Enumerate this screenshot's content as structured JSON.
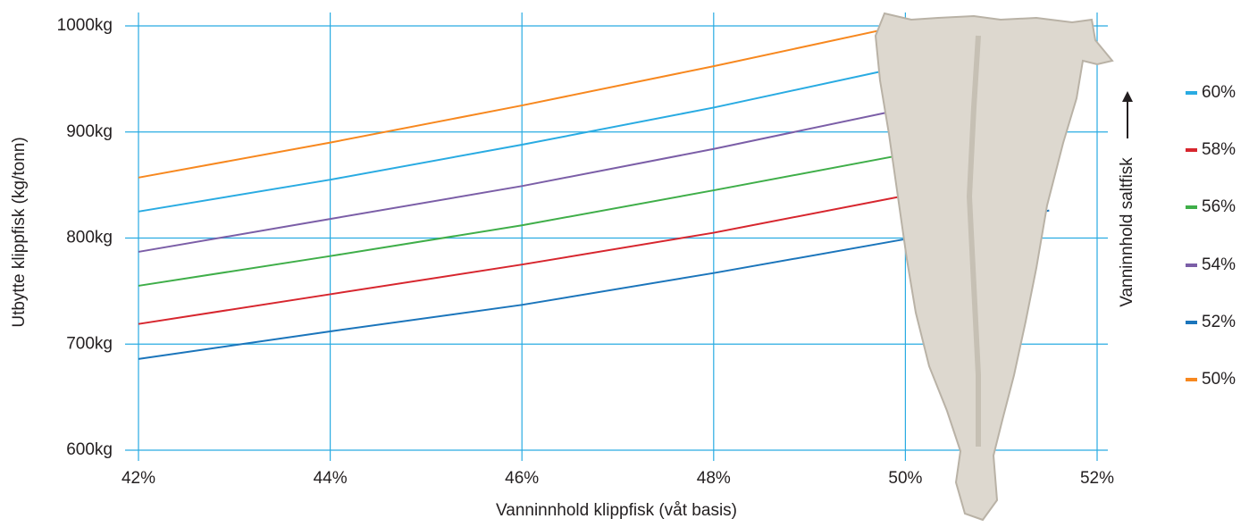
{
  "chart_data": {
    "type": "line",
    "x_label": "Vanninnhold klippfisk (våt basis)",
    "y_label": "Utbytte klippfisk (kg/tonn)",
    "legend_title": "Vanninnhold saltfisk",
    "xlim": [
      42,
      52
    ],
    "ylim": [
      600,
      1000
    ],
    "xticks": [
      {
        "value": 42,
        "label": "42%"
      },
      {
        "value": 44,
        "label": "44%"
      },
      {
        "value": 46,
        "label": "46%"
      },
      {
        "value": 48,
        "label": "48%"
      },
      {
        "value": 50,
        "label": "50%"
      },
      {
        "value": 52,
        "label": "52%"
      }
    ],
    "yticks": [
      {
        "value": 600,
        "label": "600kg"
      },
      {
        "value": 700,
        "label": "700kg"
      },
      {
        "value": 800,
        "label": "800kg"
      },
      {
        "value": 900,
        "label": "900kg"
      },
      {
        "value": 1000,
        "label": "1000kg"
      }
    ],
    "grid": true,
    "legend_position": "right",
    "series": [
      {
        "name": "60%",
        "color": "#29abe2",
        "x": [
          42,
          44,
          46,
          48,
          50,
          51.5
        ],
        "values": [
          825,
          855,
          888,
          923,
          962,
          993
        ]
      },
      {
        "name": "58%",
        "color": "#d7262e",
        "x": [
          42,
          44,
          46,
          48,
          50,
          51.5
        ],
        "values": [
          719,
          747,
          775,
          805,
          840,
          868
        ]
      },
      {
        "name": "56%",
        "color": "#3fae49",
        "x": [
          42,
          44,
          46,
          48,
          50,
          51.5
        ],
        "values": [
          755,
          783,
          812,
          845,
          879,
          908
        ]
      },
      {
        "name": "54%",
        "color": "#7b5ea7",
        "x": [
          42,
          44,
          46,
          48,
          50,
          51.5
        ],
        "values": [
          787,
          818,
          849,
          884,
          922,
          951
        ]
      },
      {
        "name": "52%",
        "color": "#1b75bb",
        "x": [
          42,
          44,
          46,
          48,
          50,
          51.5
        ],
        "values": [
          686,
          712,
          737,
          767,
          799,
          826
        ]
      },
      {
        "name": "50%",
        "color": "#f7881f",
        "x": [
          42,
          44,
          46,
          48,
          49.9
        ],
        "values": [
          857,
          890,
          925,
          962,
          999
        ]
      }
    ]
  }
}
